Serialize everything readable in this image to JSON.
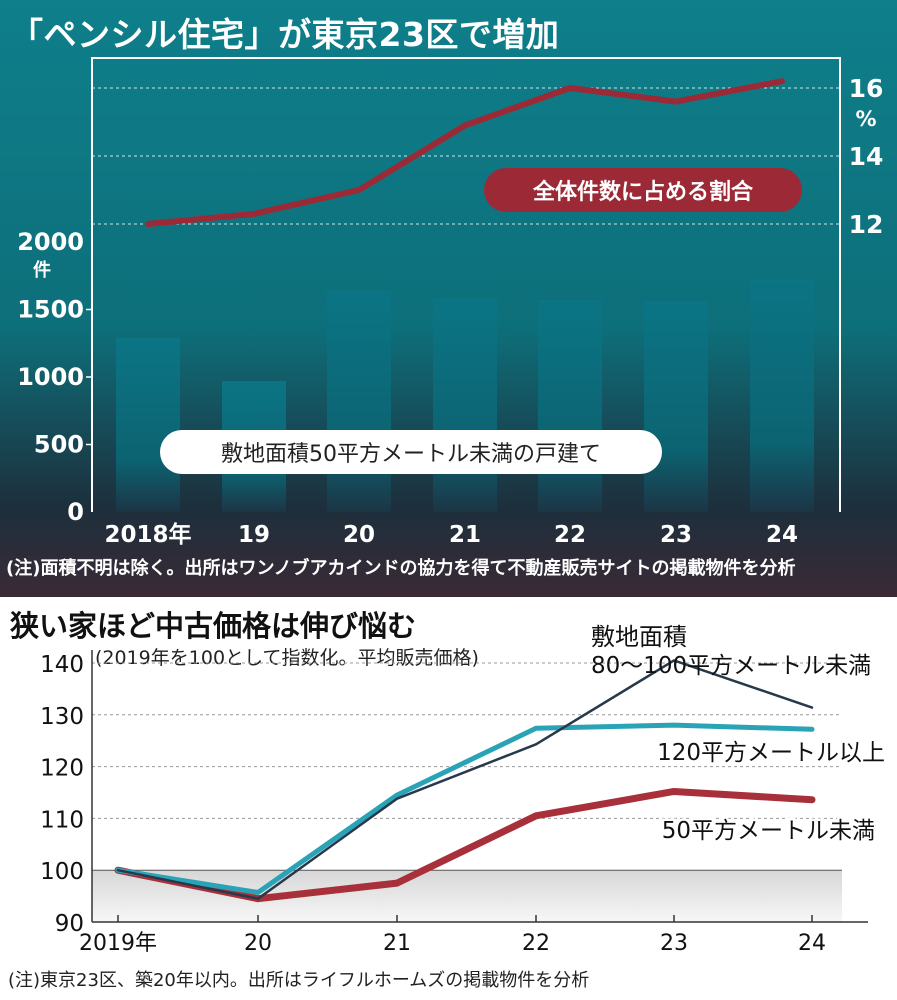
{
  "top_panel": {
    "title": "「ペンシル住宅」が東京23区で増加",
    "note": "(注)面積不明は除く。出所はワンノブアカインドの協力を得て不動産販売サイトの掲載物件を分析"
  },
  "bottom_panel": {
    "title": "狭い家ほど中古価格は伸び悩む",
    "subtitle": "(2019年を100として指数化。平均販売価格)",
    "note": "(注)東京23区、築20年以内。出所はライフルホームズの掲載物件を分析"
  },
  "colors": {
    "bar": "#0b7585",
    "ratio_line": "#9c2a36",
    "line_small": "#a8303a",
    "line_large": "#2aa3b6",
    "line_mid": "#27394a"
  },
  "chart_data": [
    {
      "type": "bar",
      "categories": [
        "2018年",
        "19",
        "20",
        "21",
        "22",
        "23",
        "24"
      ],
      "series": [
        {
          "name": "敷地面積50平方メートル未満の戸建て",
          "values": [
            1290,
            970,
            1635,
            1580,
            1570,
            1560,
            1720
          ],
          "axis": "left"
        },
        {
          "name": "全体件数に占める割合",
          "type": "line",
          "values": [
            12.0,
            12.3,
            13.0,
            14.9,
            16.0,
            15.6,
            16.2
          ],
          "axis": "right"
        }
      ],
      "left_axis": {
        "unit": "件",
        "ticks": [
          0,
          500,
          1000,
          1500,
          2000
        ],
        "ylim": [
          0,
          2000
        ]
      },
      "right_axis": {
        "unit": "%",
        "ticks": [
          12,
          14,
          16
        ],
        "ylim": [
          12,
          16
        ]
      }
    },
    {
      "type": "line",
      "categories": [
        "2019年",
        "20",
        "21",
        "22",
        "23",
        "24"
      ],
      "series": [
        {
          "name": "50平方メートル未満",
          "values": [
            100,
            94.5,
            97.5,
            110.5,
            115.2,
            113.6
          ]
        },
        {
          "name": "120平方メートル以上",
          "values": [
            100,
            95.7,
            114.5,
            127.4,
            128.0,
            127.2
          ]
        },
        {
          "name_line1": "敷地面積",
          "name": "80〜100平方メートル未満",
          "values": [
            100,
            94.5,
            113.8,
            124.3,
            140.5,
            131.4
          ]
        }
      ],
      "y_ticks": [
        90,
        100,
        110,
        120,
        130,
        140
      ],
      "ylim": [
        90,
        140
      ]
    }
  ]
}
